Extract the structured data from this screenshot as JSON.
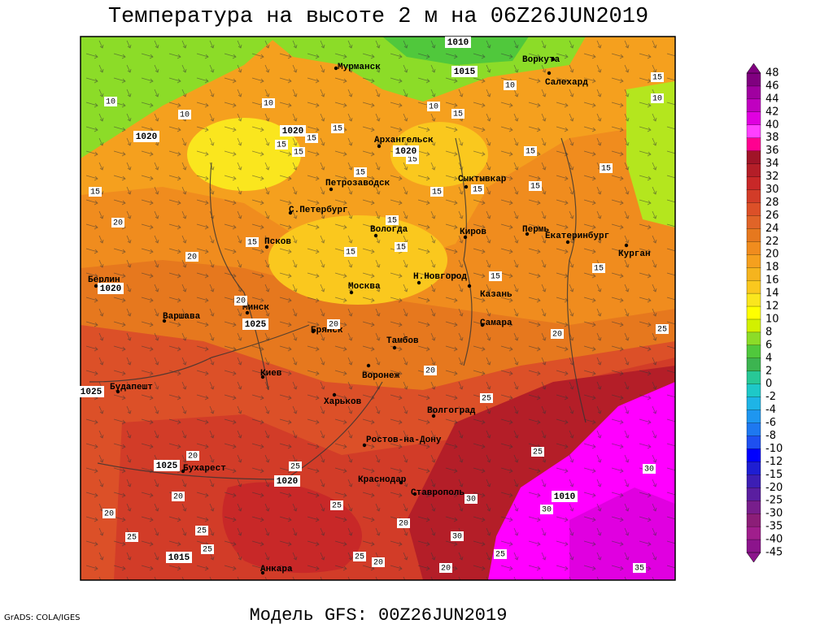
{
  "map": {
    "title": "Температура на высоте 2 м на 06Z26JUN2019",
    "cities": [
      "Мурманск",
      "Воркута",
      "Салехард",
      "Архангельск",
      "Петрозаводск",
      "Сыктывкар",
      "С.Петербург",
      "Вологда",
      "Киров",
      "Пермь",
      "Екатеринбург",
      "Курган",
      "Псков",
      "Берлин",
      "Москва",
      "Н.Новгород",
      "Казань",
      "Минск",
      "Варшава",
      "Брянск",
      "Самара",
      "Тамбов",
      "Киев",
      "Воронеж",
      "Будапешт",
      "Харьков",
      "Волгоград",
      "Ростов-на-Дону",
      "Бухарест",
      "Краснодар",
      "Ставрополь",
      "Анкара"
    ],
    "isotherm_labels": [
      10,
      10,
      10,
      10,
      10,
      10,
      15,
      15,
      15,
      15,
      15,
      15,
      15,
      15,
      15,
      15,
      15,
      15,
      15,
      15,
      15,
      15,
      15,
      15,
      15,
      15,
      20,
      20,
      20,
      20,
      20,
      20,
      20,
      20,
      20,
      20,
      20,
      20,
      25,
      25,
      25,
      25,
      25,
      25,
      25,
      25,
      25,
      25,
      30,
      30,
      30,
      30,
      35
    ],
    "isobar_labels": [
      1010,
      1015,
      1020,
      1020,
      1020,
      1020,
      1025,
      1025,
      1025,
      1020,
      1010,
      1015
    ]
  },
  "colorbar": {
    "levels": [
      48,
      46,
      44,
      42,
      40,
      38,
      36,
      34,
      32,
      30,
      28,
      26,
      24,
      22,
      20,
      18,
      16,
      14,
      12,
      10,
      8,
      6,
      4,
      2,
      0,
      -2,
      -4,
      -6,
      -8,
      -10,
      -12,
      -15,
      -20,
      -25,
      -30,
      -35,
      -40,
      -45
    ],
    "colors": [
      "#800080",
      "#a000a0",
      "#c000c0",
      "#e000e0",
      "#ff40ff",
      "#ff0090",
      "#a01428",
      "#b41e28",
      "#c82828",
      "#d23c28",
      "#dc5028",
      "#e06428",
      "#e6781e",
      "#f08c1e",
      "#f5a01e",
      "#f5b41e",
      "#fac81e",
      "#fae61e",
      "#ffff00",
      "#d2f000",
      "#8cdc28",
      "#50c83c",
      "#3cb450",
      "#28c896",
      "#1ec8c8",
      "#1eb4e6",
      "#1e96f0",
      "#1e78f0",
      "#1e50f0",
      "#0000ff",
      "#1e1ed2",
      "#3c1eb4",
      "#5a1ea0",
      "#781e8c",
      "#8c1e78",
      "#a01e8c",
      "#8c148c"
    ]
  },
  "footer": {
    "model": "Модель GFS: 00Z26JUN2019",
    "credit": "GrADS: COLA/IGES"
  }
}
